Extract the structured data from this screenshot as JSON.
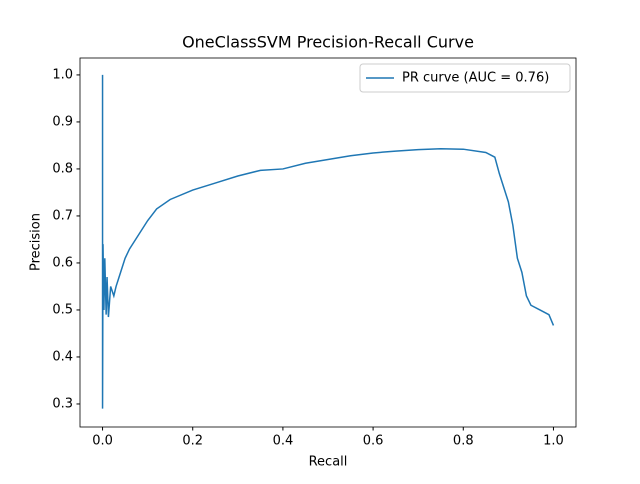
{
  "chart_data": {
    "type": "line",
    "title": "OneClassSVM Precision-Recall Curve",
    "x_label": "Recall",
    "y_label": "Precision",
    "x": [
      0,
      0,
      0.001,
      0.003,
      0.005,
      0.008,
      0.01,
      0.013,
      0.018,
      0.025,
      0.03,
      0.04,
      0.05,
      0.06,
      0.08,
      0.1,
      0.12,
      0.15,
      0.2,
      0.25,
      0.3,
      0.35,
      0.4,
      0.45,
      0.5,
      0.55,
      0.6,
      0.65,
      0.7,
      0.75,
      0.8,
      0.85,
      0.87,
      0.88,
      0.9,
      0.91,
      0.92,
      0.93,
      0.94,
      0.95,
      0.97,
      0.99,
      1.0
    ],
    "series": [
      {
        "name": "PR curve (AUC = 0.76)",
        "color": "#1f77b4",
        "values": [
          1.0,
          0.29,
          0.64,
          0.5,
          0.61,
          0.49,
          0.57,
          0.485,
          0.55,
          0.53,
          0.55,
          0.58,
          0.61,
          0.63,
          0.66,
          0.69,
          0.715,
          0.735,
          0.755,
          0.77,
          0.785,
          0.797,
          0.8,
          0.812,
          0.82,
          0.828,
          0.834,
          0.838,
          0.841,
          0.843,
          0.842,
          0.835,
          0.825,
          0.79,
          0.73,
          0.68,
          0.61,
          0.58,
          0.53,
          0.51,
          0.5,
          0.49,
          0.467
        ]
      }
    ],
    "xlim": [
      -0.05,
      1.05
    ],
    "ylim": [
      0.251,
      1.036
    ],
    "xticks": [
      {
        "value": 0,
        "label": "0.0"
      },
      0.2,
      0.4,
      0.6,
      0.8,
      {
        "value": 1,
        "label": "1.0"
      }
    ],
    "yticks": [
      0.3,
      0.4,
      0.5,
      0.6,
      0.7,
      0.8,
      0.9,
      {
        "value": 1,
        "label": "1.0"
      }
    ],
    "legend": "upper right",
    "grid": false
  }
}
